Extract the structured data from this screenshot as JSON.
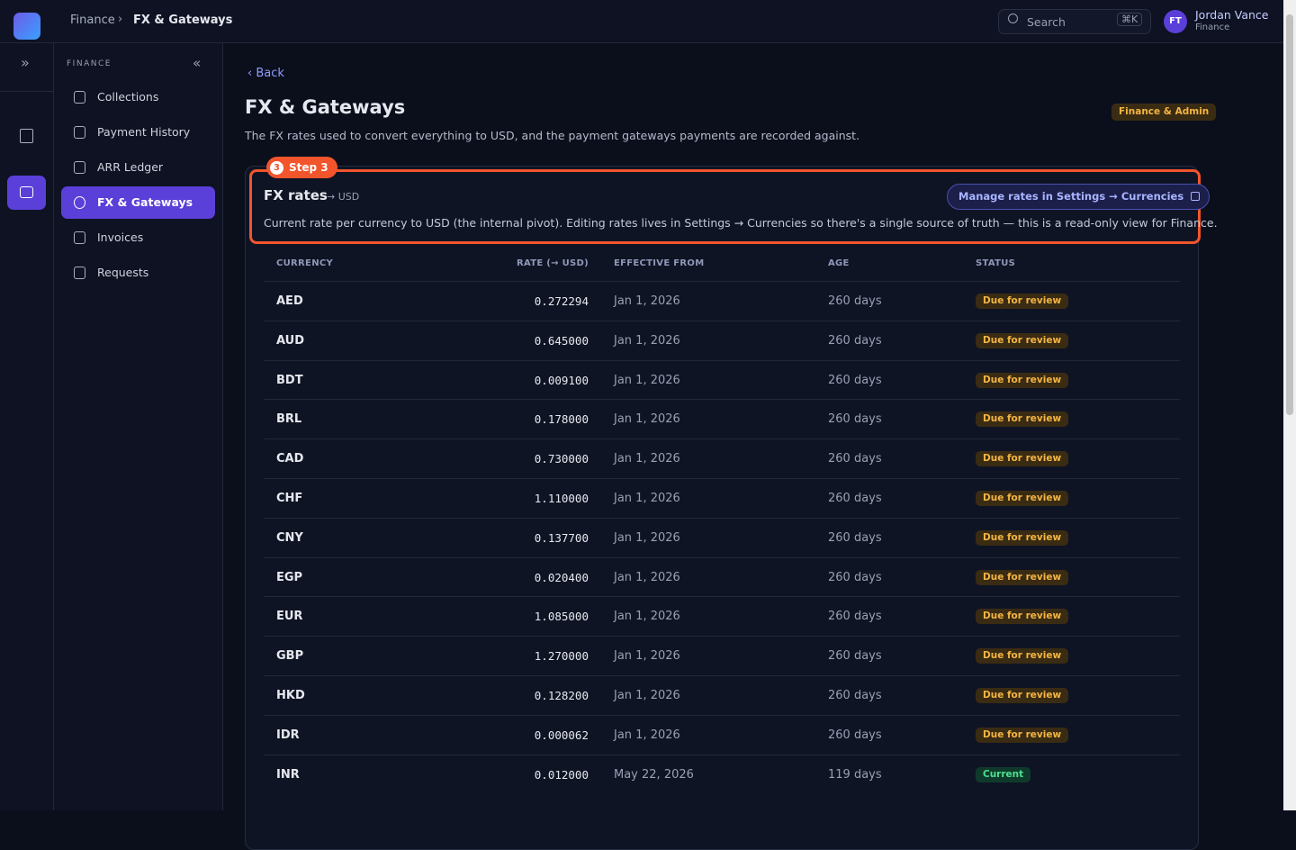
{
  "breadcrumb": [
    "Finance",
    "FX & Gateways"
  ],
  "search": {
    "placeholder": "Search",
    "shortcut": "⌘K"
  },
  "user": {
    "initials": "FT",
    "name": "Jordan Vance",
    "role": "Finance"
  },
  "sidebar": {
    "section": "FINANCE",
    "items": [
      "Collections",
      "Payment History",
      "ARR Ledger",
      "FX & Gateways",
      "Invoices",
      "Requests"
    ]
  },
  "back": "Back",
  "header": {
    "title": "FX & Gateways",
    "description": "The FX rates used to convert everything to USD, and the payment gateways payments are recorded against.",
    "badge": "Finance & Admin"
  },
  "step": {
    "number": "3",
    "label": "Step 3"
  },
  "card": {
    "title": "FX rates",
    "pivot": "→ USD",
    "action": "Manage rates in Settings → Currencies",
    "description": "Current rate per currency to USD (the internal pivot). Editing rates lives in Settings → Currencies so there's a single source of truth — this is a read-only view for Finance."
  },
  "table": {
    "columns": [
      "CURRENCY",
      "RATE (→ USD)",
      "EFFECTIVE FROM",
      "AGE",
      "STATUS"
    ],
    "rows": [
      [
        "AED",
        "0.272294",
        "Jan 1, 2026",
        "260 days",
        "Due for review"
      ],
      [
        "AUD",
        "0.645000",
        "Jan 1, 2026",
        "260 days",
        "Due for review"
      ],
      [
        "BDT",
        "0.009100",
        "Jan 1, 2026",
        "260 days",
        "Due for review"
      ],
      [
        "BRL",
        "0.178000",
        "Jan 1, 2026",
        "260 days",
        "Due for review"
      ],
      [
        "CAD",
        "0.730000",
        "Jan 1, 2026",
        "260 days",
        "Due for review"
      ],
      [
        "CHF",
        "1.110000",
        "Jan 1, 2026",
        "260 days",
        "Due for review"
      ],
      [
        "CNY",
        "0.137700",
        "Jan 1, 2026",
        "260 days",
        "Due for review"
      ],
      [
        "EGP",
        "0.020400",
        "Jan 1, 2026",
        "260 days",
        "Due for review"
      ],
      [
        "EUR",
        "1.085000",
        "Jan 1, 2026",
        "260 days",
        "Due for review"
      ],
      [
        "GBP",
        "1.270000",
        "Jan 1, 2026",
        "260 days",
        "Due for review"
      ],
      [
        "HKD",
        "0.128200",
        "Jan 1, 2026",
        "260 days",
        "Due for review"
      ],
      [
        "IDR",
        "0.000062",
        "Jan 1, 2026",
        "260 days",
        "Due for review"
      ],
      [
        "INR",
        "0.012000",
        "May 22, 2026",
        "119 days",
        "Current"
      ]
    ]
  }
}
